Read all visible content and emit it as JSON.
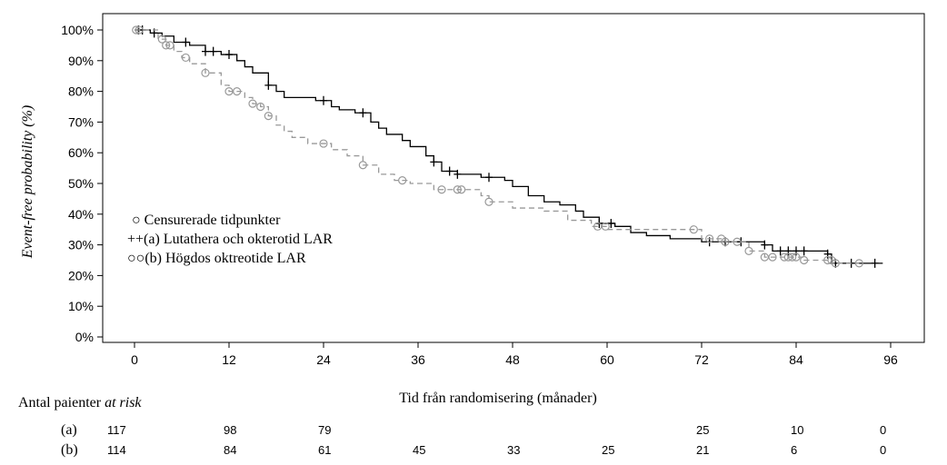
{
  "chart_data": {
    "type": "line",
    "subtype": "kaplan-meier",
    "title": "",
    "xlabel": "Tid från randomisering (månader)",
    "ylabel": "Event-free probability (%)",
    "xlim": [
      0,
      96
    ],
    "ylim": [
      0,
      100
    ],
    "xticks": [
      "0",
      "12",
      "24",
      "36",
      "48",
      "60",
      "72",
      "84",
      "96"
    ],
    "yticks": [
      "0%",
      "10%",
      "20%",
      "30%",
      "40%",
      "50%",
      "60%",
      "70%",
      "80%",
      "90%",
      "100%"
    ],
    "legend": {
      "placement": "bottom-left",
      "entries": [
        "○ Censurerade tidpunkter",
        "++(a) Lutathera och okterotid LAR",
        "○○(b) Högdos oktreotide LAR"
      ]
    },
    "series": [
      {
        "name": "(a) Lutathera och okterotid LAR",
        "color": "#000000",
        "style": "solid",
        "censor_marker": "plus",
        "steps": [
          [
            0,
            100
          ],
          [
            2,
            99
          ],
          [
            3.5,
            98
          ],
          [
            5,
            96
          ],
          [
            7,
            95
          ],
          [
            9,
            93
          ],
          [
            11,
            92
          ],
          [
            13,
            90
          ],
          [
            14,
            88
          ],
          [
            15,
            86
          ],
          [
            17,
            82
          ],
          [
            18,
            80
          ],
          [
            19,
            78
          ],
          [
            23,
            77
          ],
          [
            25,
            75
          ],
          [
            26,
            74
          ],
          [
            28,
            73
          ],
          [
            30,
            70
          ],
          [
            31,
            68
          ],
          [
            32,
            66
          ],
          [
            34,
            64
          ],
          [
            35,
            62
          ],
          [
            37,
            59
          ],
          [
            38,
            57
          ],
          [
            39,
            54
          ],
          [
            41,
            53
          ],
          [
            44,
            52
          ],
          [
            47,
            51
          ],
          [
            48,
            49
          ],
          [
            50,
            46
          ],
          [
            52,
            44
          ],
          [
            54,
            43
          ],
          [
            56,
            41
          ],
          [
            57,
            39
          ],
          [
            59,
            37
          ],
          [
            61,
            36
          ],
          [
            63,
            34
          ],
          [
            65,
            33
          ],
          [
            68,
            32
          ],
          [
            72,
            31
          ],
          [
            80,
            30
          ],
          [
            81,
            28
          ],
          [
            88,
            27
          ],
          [
            88.5,
            24
          ],
          [
            95,
            24
          ]
        ],
        "censored": [
          0.5,
          1,
          2.5,
          6.5,
          9,
          10,
          12,
          17,
          24,
          29,
          38,
          40,
          41,
          45,
          59,
          60.5,
          73,
          75,
          77,
          80,
          82,
          83,
          84,
          85,
          88,
          89,
          91,
          94
        ]
      },
      {
        "name": "(b) Högdos oktreotide LAR",
        "color": "#999999",
        "style": "dashed",
        "censor_marker": "circle",
        "steps": [
          [
            0,
            100
          ],
          [
            3,
            97
          ],
          [
            4,
            95
          ],
          [
            5,
            93
          ],
          [
            6,
            91
          ],
          [
            7,
            89
          ],
          [
            9,
            86
          ],
          [
            11,
            82
          ],
          [
            12,
            80
          ],
          [
            14,
            78
          ],
          [
            15,
            76
          ],
          [
            16,
            75
          ],
          [
            17,
            72
          ],
          [
            18,
            69
          ],
          [
            19,
            67
          ],
          [
            20,
            65
          ],
          [
            22,
            63
          ],
          [
            25,
            61
          ],
          [
            27,
            59
          ],
          [
            29,
            56
          ],
          [
            31,
            53
          ],
          [
            33,
            51
          ],
          [
            35,
            50
          ],
          [
            38,
            48
          ],
          [
            44,
            46
          ],
          [
            45,
            44
          ],
          [
            48,
            42
          ],
          [
            52,
            41
          ],
          [
            55,
            38
          ],
          [
            58,
            36
          ],
          [
            60,
            35
          ],
          [
            66,
            35
          ],
          [
            72,
            32
          ],
          [
            75,
            31
          ],
          [
            78,
            28
          ],
          [
            80,
            26
          ],
          [
            85,
            25
          ],
          [
            88,
            25
          ],
          [
            89,
            24
          ],
          [
            92,
            24
          ]
        ],
        "censored": [
          0.2,
          0.6,
          3.5,
          4,
          4.5,
          6.5,
          9,
          12,
          13,
          15,
          16,
          17,
          24,
          29,
          34,
          39,
          41,
          41.5,
          45,
          58.8,
          59.8,
          71,
          73,
          74.5,
          75,
          76.5,
          78,
          80,
          81,
          82.5,
          83,
          83.5,
          84,
          85,
          88,
          88.5,
          89,
          92
        ]
      }
    ],
    "at_risk": {
      "title": "Antal paienter",
      "title_italic": "at risk",
      "times": [
        0,
        12,
        24,
        36,
        48,
        60,
        72,
        84,
        96
      ],
      "rows": [
        {
          "label": "(a)",
          "values": [
            "117",
            "98",
            "79",
            "",
            "",
            "",
            "25",
            "10",
            "0"
          ]
        },
        {
          "label": "(b)",
          "values": [
            "114",
            "84",
            "61",
            "45",
            "33",
            "25",
            "21",
            "6",
            "0"
          ]
        }
      ]
    }
  }
}
